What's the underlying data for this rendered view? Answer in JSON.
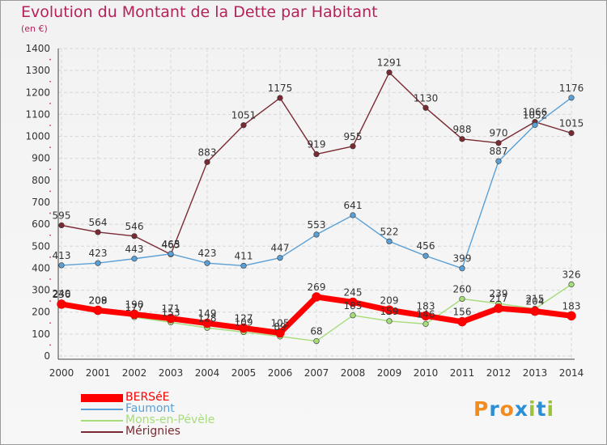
{
  "title": "Evolution du Montant de la Dette par Habitant",
  "subtitle": "(en €)",
  "logo_text": "Proxiti",
  "chart_data": {
    "type": "line",
    "x": [
      2000,
      2001,
      2002,
      2003,
      2004,
      2005,
      2006,
      2007,
      2008,
      2009,
      2010,
      2011,
      2012,
      2013,
      2014
    ],
    "ylim": [
      0,
      1400
    ],
    "yticks": [
      0,
      100,
      200,
      300,
      400,
      500,
      600,
      700,
      800,
      900,
      1000,
      1100,
      1200,
      1300,
      1400
    ],
    "grid": true,
    "legend_position": "bottom-left",
    "series": [
      {
        "name": "BERSéE",
        "color": "#ff0000",
        "values": [
          236,
          208,
          190,
          171,
          149,
          127,
          105,
          269,
          245,
          209,
          183,
          156,
          217,
          204,
          183
        ]
      },
      {
        "name": "Faumont",
        "color": "#5aa0d6",
        "values": [
          413,
          423,
          443,
          465,
          423,
          411,
          447,
          553,
          641,
          522,
          456,
          399,
          887,
          1052,
          1176
        ]
      },
      {
        "name": "Mons-en-Pévèle",
        "color": "#a6dc7a",
        "values": [
          240,
          209,
          177,
          153,
          128,
          109,
          89,
          68,
          185,
          159,
          146,
          260,
          239,
          215,
          326
        ]
      },
      {
        "name": "Mérignies",
        "color": "#7a2a32",
        "values": [
          595,
          564,
          546,
          463,
          883,
          1051,
          1175,
          919,
          955,
          1291,
          1130,
          988,
          970,
          1066,
          1015
        ]
      }
    ]
  }
}
